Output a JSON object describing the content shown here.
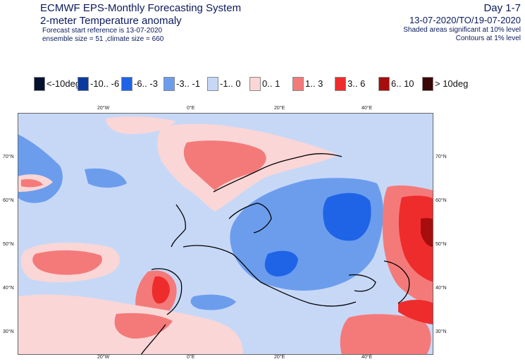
{
  "header": {
    "system": "ECMWF EPS-Monthly Forecasting System",
    "product": "2-meter Temperature anomaly",
    "start_ref": "Forecast start reference is 13-07-2020",
    "ensemble": "ensemble size = 51  ,climate size = 660",
    "day_range": "Day 1-7",
    "period": "13-07-2020/TO/19-07-2020",
    "shading_note": "Shaded areas significant at 10% level",
    "contour_note": "Contours at 1% level"
  },
  "legend": [
    {
      "label": "<-10deg",
      "color": "#05112e"
    },
    {
      "label": "-10.. -6",
      "color": "#0b3a9e"
    },
    {
      "label": "-6.. -3",
      "color": "#1f63e6"
    },
    {
      "label": "-3.. -1",
      "color": "#6c9ded"
    },
    {
      "label": "-1.. 0",
      "color": "#c7d8f7"
    },
    {
      "label": "0.. 1",
      "color": "#fad6d6"
    },
    {
      "label": "1.. 3",
      "color": "#f47a7a"
    },
    {
      "label": "3.. 6",
      "color": "#ee2c2c"
    },
    {
      "label": "6.. 10",
      "color": "#a80d0d"
    },
    {
      "label": "> 10deg",
      "color": "#3a0606"
    }
  ],
  "axes": {
    "lon_labels": [
      "20°W",
      "0°E",
      "20°E",
      "40°E"
    ],
    "lat_labels": [
      "70°N",
      "60°N",
      "50°N",
      "40°N",
      "30°N"
    ]
  }
}
